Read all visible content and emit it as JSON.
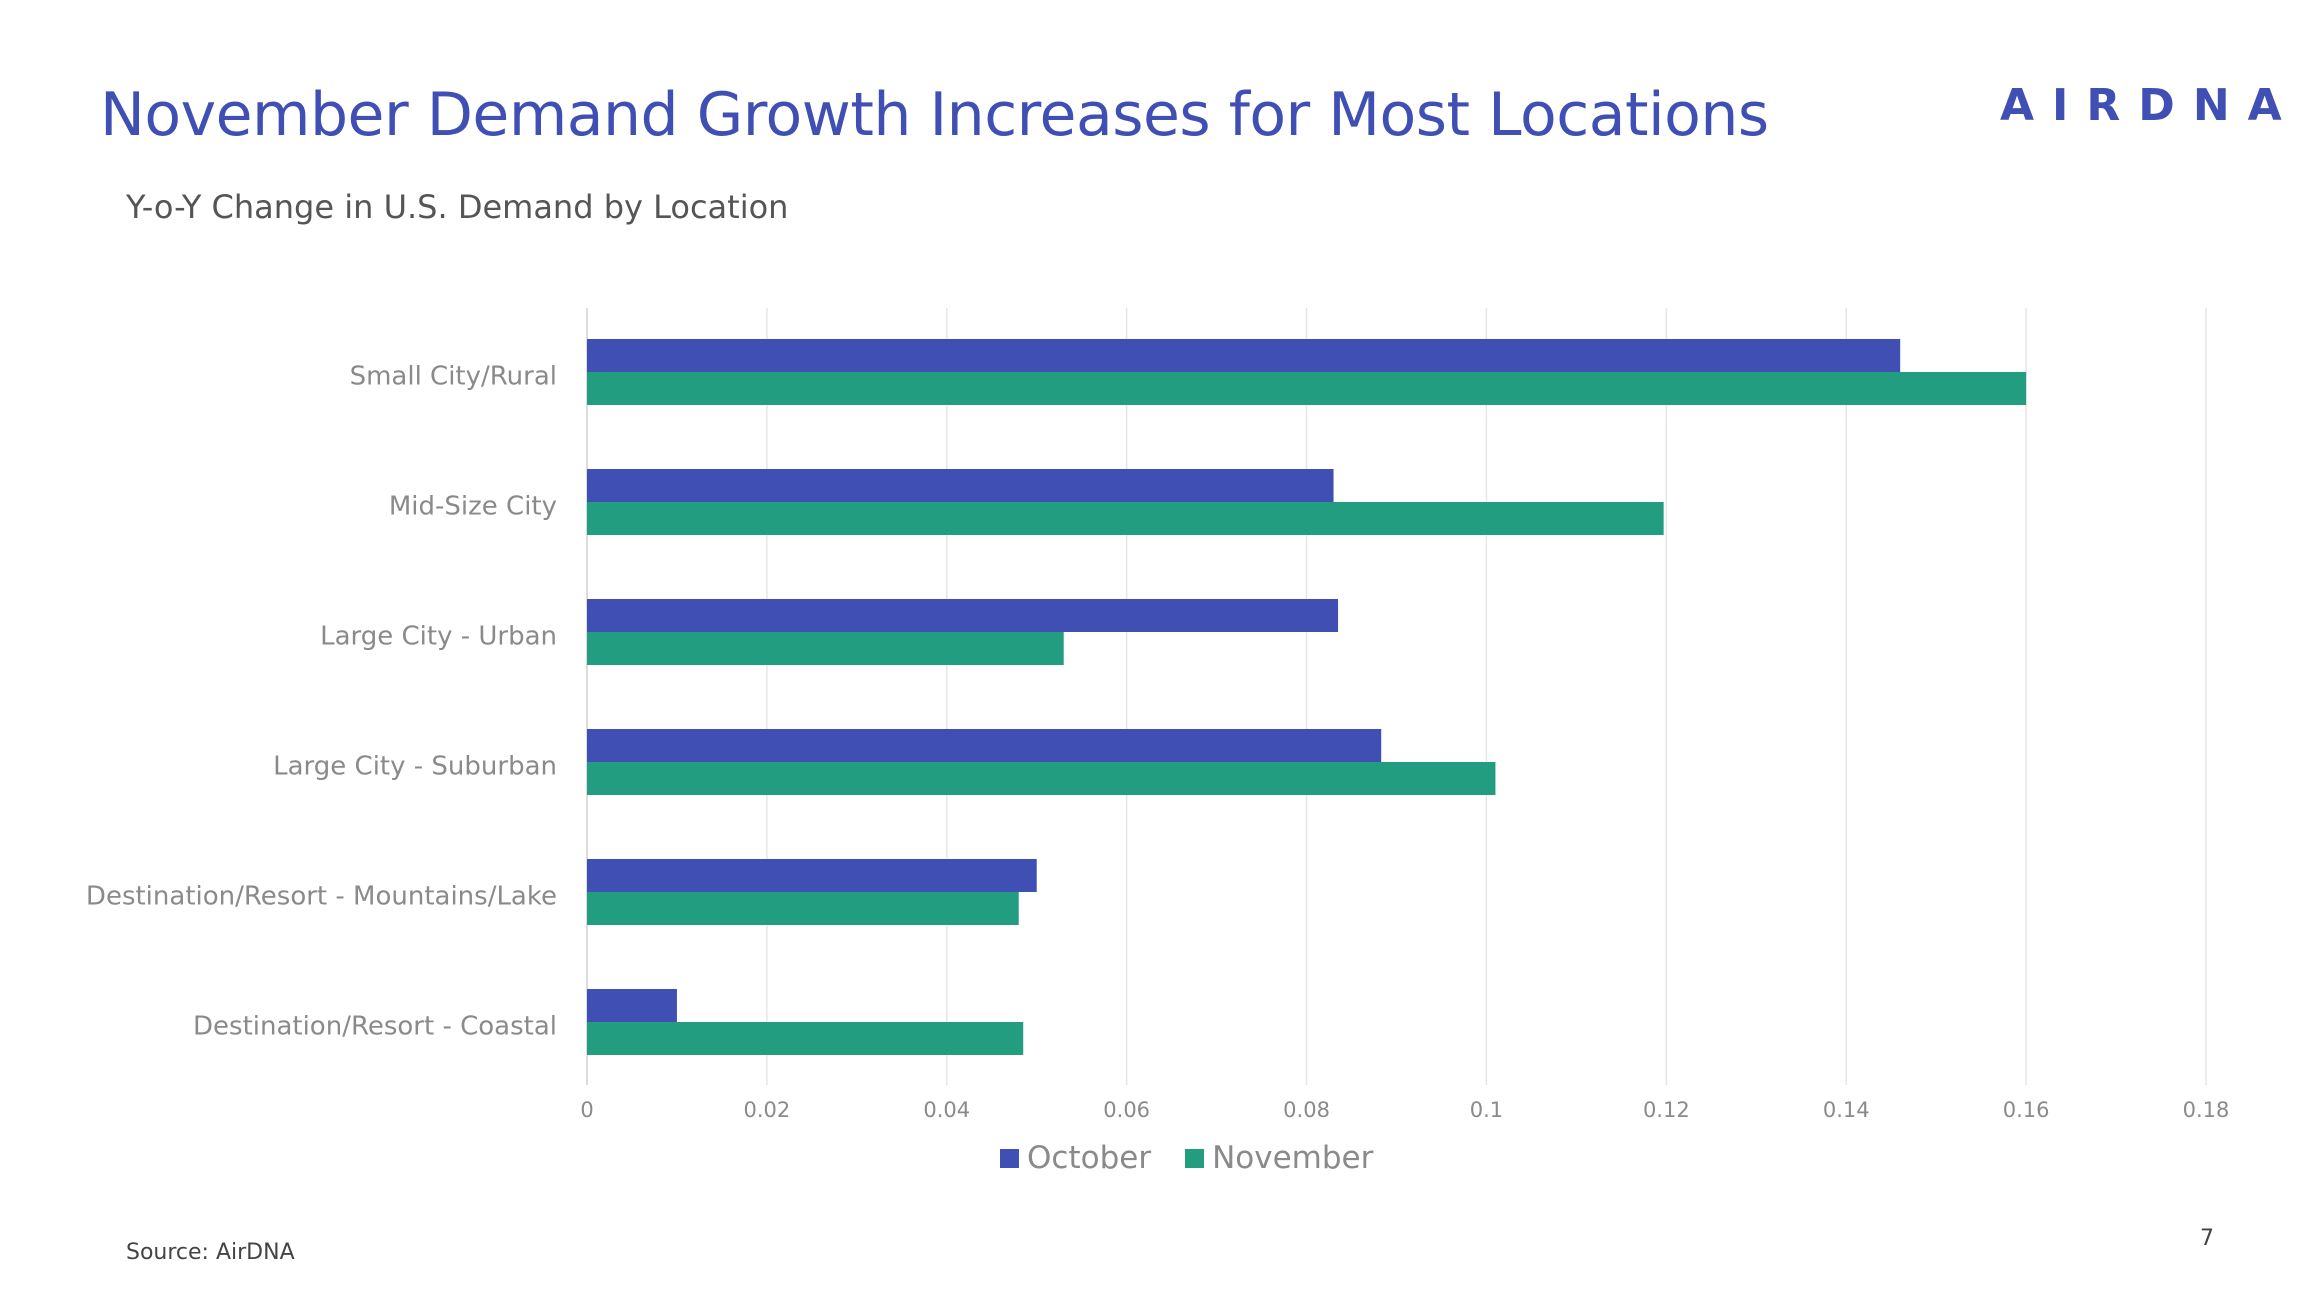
{
  "slide": {
    "title": "November Demand Growth Increases for Most Locations",
    "logo_text": "AIRDNA",
    "subtitle": "Y-o-Y Change in U.S. Demand by Location",
    "source": "Source: AirDNA",
    "page_number": "7"
  },
  "chart_data": {
    "type": "bar",
    "orientation": "horizontal",
    "title": "Y-o-Y Change in U.S. Demand by Location",
    "xlabel": "",
    "ylabel": "",
    "categories": [
      "Small City/Rural",
      "Mid-Size City",
      "Large City - Urban",
      "Large City - Suburban",
      "Destination/Resort - Mountains/Lake",
      "Destination/Resort - Coastal"
    ],
    "series": [
      {
        "name": "October",
        "color": "#3f4fb3",
        "values": [
          0.146,
          0.083,
          0.0835,
          0.0883,
          0.05,
          0.01
        ]
      },
      {
        "name": "November",
        "color": "#239d80",
        "values": [
          0.16,
          0.1197,
          0.053,
          0.101,
          0.048,
          0.0485
        ]
      }
    ],
    "xlim": [
      0,
      0.18
    ],
    "ticks": [
      "0",
      "0.02",
      "0.04",
      "0.06",
      "0.08",
      "0.1",
      "0.12",
      "0.14",
      "0.16",
      "0.18"
    ],
    "grid": true,
    "legend_position": "bottom-center"
  }
}
